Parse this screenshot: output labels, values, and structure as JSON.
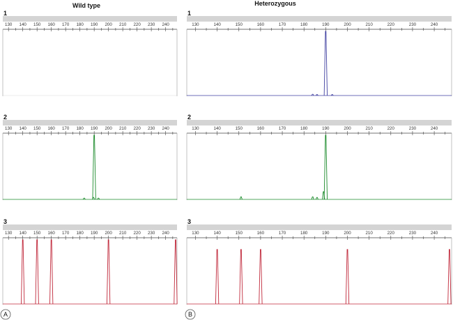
{
  "columns": [
    {
      "title": "Wild type",
      "panel_label": "A"
    },
    {
      "title": "Heterozygous",
      "panel_label": "B"
    }
  ],
  "row_labels": [
    "1",
    "2",
    "3"
  ],
  "axis": {
    "xlim": [
      126,
      248
    ],
    "ticks": [
      130,
      140,
      150,
      160,
      170,
      180,
      190,
      200,
      210,
      220,
      230,
      240
    ]
  },
  "colors": {
    "row1": "#3f3fa0",
    "row2": "#1a8a2a",
    "row3": "#c0283a",
    "header_bar": "#d4d4d4"
  },
  "chart_data": [
    {
      "type": "line",
      "column": "Wild type",
      "row": "1",
      "series": []
    },
    {
      "type": "line",
      "column": "Heterozygous",
      "row": "1",
      "series": [
        {
          "color": "row1",
          "peaks": [
            {
              "x": 184,
              "height": 0.02
            },
            {
              "x": 186,
              "height": 0.015
            },
            {
              "x": 190,
              "height": 1.0
            },
            {
              "x": 193,
              "height": 0.015
            }
          ]
        }
      ]
    },
    {
      "type": "line",
      "column": "Wild type",
      "row": "2",
      "series": [
        {
          "color": "row2",
          "peaks": [
            {
              "x": 183,
              "height": 0.02
            },
            {
              "x": 189.5,
              "height": 0.03
            },
            {
              "x": 190,
              "height": 1.0
            },
            {
              "x": 193,
              "height": 0.02
            }
          ]
        }
      ]
    },
    {
      "type": "line",
      "column": "Heterozygous",
      "row": "2",
      "series": [
        {
          "color": "row2",
          "peaks": [
            {
              "x": 151,
              "height": 0.04
            },
            {
              "x": 184,
              "height": 0.04
            },
            {
              "x": 186,
              "height": 0.03
            },
            {
              "x": 189,
              "height": 0.12
            },
            {
              "x": 190,
              "height": 1.0
            }
          ]
        }
      ]
    },
    {
      "type": "line",
      "column": "Wild type",
      "row": "3",
      "series": [
        {
          "color": "row3",
          "peaks": [
            {
              "x": 140,
              "height": 1.0
            },
            {
              "x": 150,
              "height": 1.0
            },
            {
              "x": 160,
              "height": 1.0
            },
            {
              "x": 200,
              "height": 1.0
            },
            {
              "x": 247,
              "height": 1.0
            }
          ]
        }
      ]
    },
    {
      "type": "line",
      "column": "Heterozygous",
      "row": "3",
      "series": [
        {
          "color": "row3",
          "peaks": [
            {
              "x": 140,
              "height": 0.85
            },
            {
              "x": 151,
              "height": 0.85
            },
            {
              "x": 160,
              "height": 0.85
            },
            {
              "x": 200,
              "height": 0.85
            },
            {
              "x": 247,
              "height": 0.85
            }
          ]
        }
      ]
    }
  ]
}
